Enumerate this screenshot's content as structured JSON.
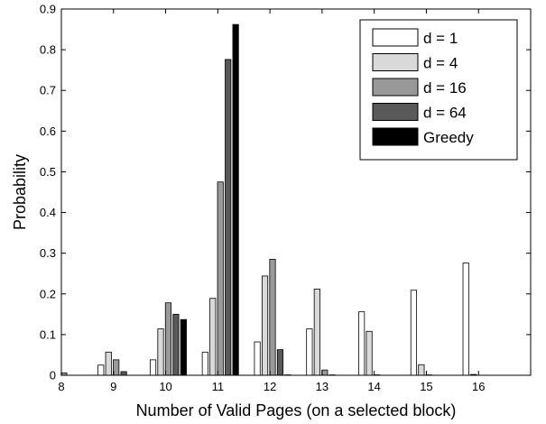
{
  "chart_data": {
    "type": "bar",
    "xlabel": "Number of Valid Pages (on a selected block)",
    "ylabel": "Probability",
    "xlim": [
      8,
      17
    ],
    "ylim": [
      0,
      0.9
    ],
    "x_ticks": [
      "8",
      "9",
      "10",
      "11",
      "12",
      "13",
      "14",
      "15",
      "16"
    ],
    "y_ticks": [
      "0",
      "0.1",
      "0.2",
      "0.3",
      "0.4",
      "0.5",
      "0.6",
      "0.7",
      "0.8",
      "0.9"
    ],
    "grid": false,
    "legend_position": "top-right",
    "categories": [
      8,
      9,
      10,
      11,
      12,
      13,
      14,
      15,
      16
    ],
    "series": [
      {
        "name": "d = 1",
        "color": "#ffffff",
        "values": [
          0,
          0.025,
          0.038,
          0.057,
          0.082,
          0.114,
          0.156,
          0.209,
          0.276
        ]
      },
      {
        "name": "d = 4",
        "color": "#d9d9d9",
        "values": [
          0,
          0.057,
          0.114,
          0.189,
          0.244,
          0.212,
          0.108,
          0.026,
          0.002
        ]
      },
      {
        "name": "d = 16",
        "color": "#999999",
        "values": [
          0.006,
          0.038,
          0.178,
          0.475,
          0.285,
          0.013,
          0.001,
          0.001,
          0
        ]
      },
      {
        "name": "d = 64",
        "color": "#595959",
        "values": [
          0,
          0.009,
          0.15,
          0.776,
          0.063,
          0.001,
          0,
          0,
          0
        ]
      },
      {
        "name": "Greedy",
        "color": "#000000",
        "values": [
          0,
          0,
          0.137,
          0.862,
          0.001,
          0,
          0,
          0,
          0
        ]
      }
    ]
  }
}
